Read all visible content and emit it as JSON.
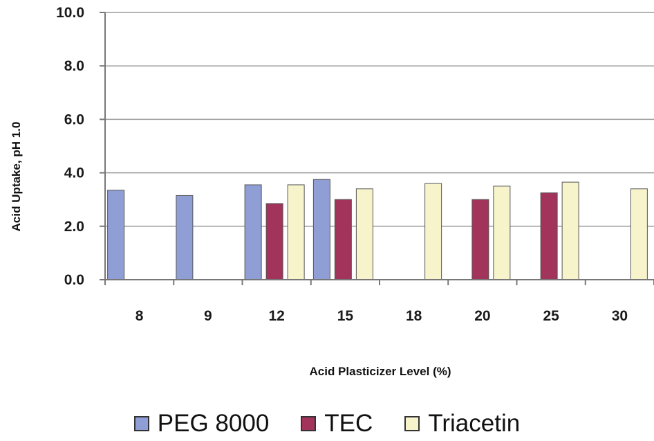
{
  "chart_data": {
    "type": "bar",
    "title": "",
    "xlabel": "Acid Plasticizer Level (%)",
    "ylabel": "Acid Uptake, pH 1.0",
    "ylim": [
      0,
      10
    ],
    "yticks": [
      "0.0",
      "2.0",
      "4.0",
      "6.0",
      "8.0",
      "10.0"
    ],
    "categories": [
      "8",
      "9",
      "12",
      "15",
      "18",
      "20",
      "25",
      "30"
    ],
    "grid": true,
    "legend_position": "bottom",
    "series": [
      {
        "name": "PEG 8000",
        "color": "#8f9fd6",
        "values": [
          3.35,
          3.15,
          3.55,
          3.75,
          null,
          null,
          null,
          null
        ]
      },
      {
        "name": "TEC",
        "color": "#a2335a",
        "values": [
          null,
          null,
          2.85,
          3.0,
          null,
          3.0,
          3.25,
          null
        ]
      },
      {
        "name": "Triacetin",
        "color": "#f7f4cc",
        "values": [
          null,
          null,
          3.55,
          3.4,
          3.6,
          3.5,
          3.65,
          3.4
        ]
      }
    ]
  }
}
